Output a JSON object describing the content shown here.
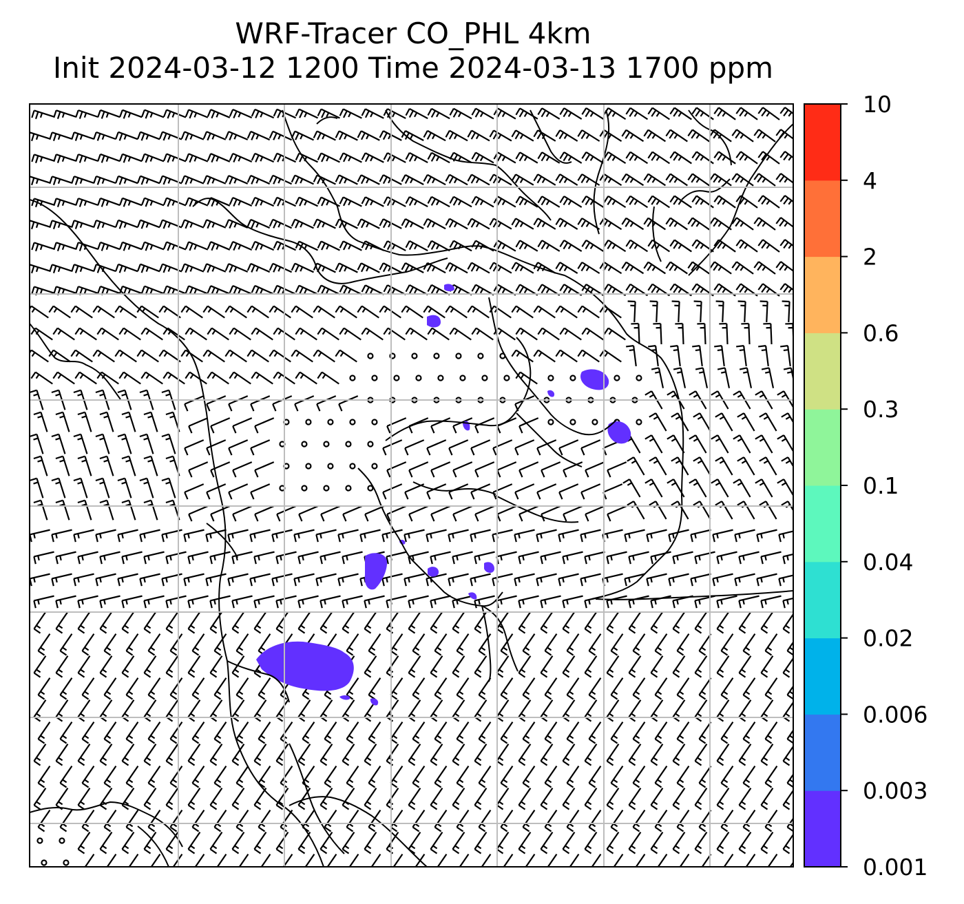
{
  "title": {
    "line1": "WRF-Tracer CO_PHL 4km",
    "line2": "Init 2024-03-12 1200 Time 2024-03-13 1700 ppm"
  },
  "colorbar": {
    "levels": [
      "0.001",
      "0.003",
      "0.006",
      "0.02",
      "0.04",
      "0.1",
      "0.3",
      "0.6",
      "2",
      "4",
      "10"
    ],
    "colors": [
      "#6230ff",
      "#3378f0",
      "#00b2ea",
      "#2ee0d2",
      "#5df8bd",
      "#8ff59a",
      "#cfe184",
      "#ffb45d",
      "#ff7038",
      "#ff2c16"
    ]
  },
  "map": {
    "gridlines": true,
    "features": [
      "coastlines",
      "state-borders",
      "wind-barbs",
      "tracer-contours"
    ],
    "tracer_color": "#6230ff"
  }
}
